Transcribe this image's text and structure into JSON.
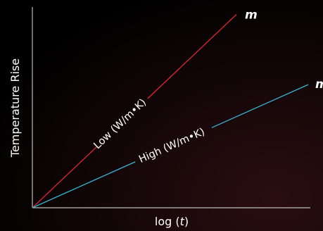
{
  "chart_data": {
    "type": "line",
    "xlabel_prefix": "log (",
    "xlabel_var": "t",
    "xlabel_suffix": ")",
    "ylabel": "Temperature Rise",
    "xlim": [
      0,
      1
    ],
    "ylim": [
      0,
      1
    ],
    "grid": false,
    "legend": "none",
    "series": [
      {
        "name": "Low (W/m•K)",
        "color": "#e0262e",
        "x": [
          0.0,
          0.725
        ],
        "y": [
          0.0,
          0.915
        ],
        "slope_label": "m"
      },
      {
        "name": "High (W/m•K)",
        "color": "#3ab6d6",
        "x": [
          0.0,
          0.98
        ],
        "y": [
          0.0,
          0.583
        ],
        "slope_label": "m"
      }
    ]
  },
  "colors": {
    "background": "#000000",
    "axis": "#bbbbbb",
    "text": "#ffffff"
  }
}
